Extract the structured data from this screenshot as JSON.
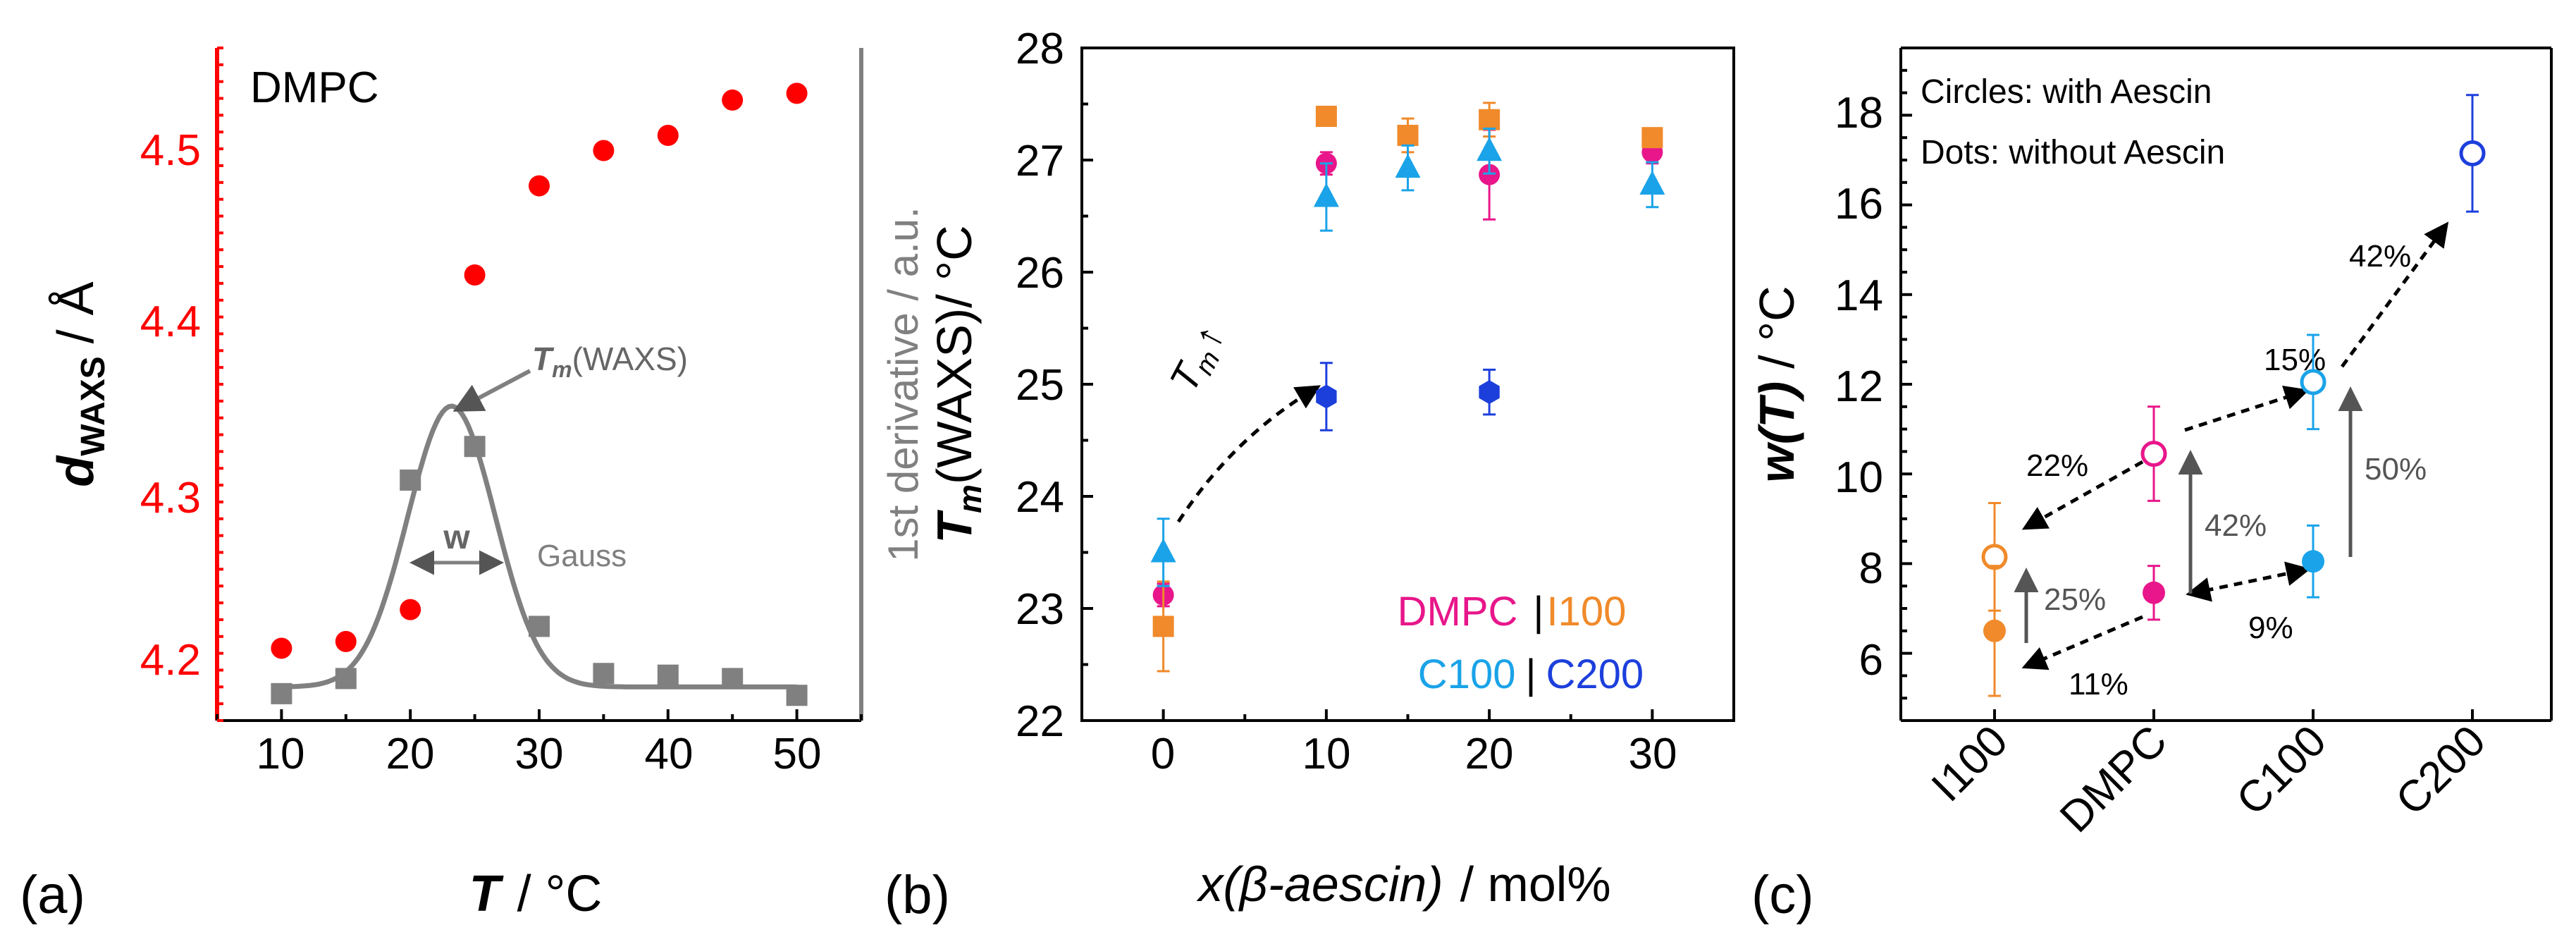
{
  "chart_data": [
    {
      "panel": "(a)",
      "type": "scatter",
      "title": "DMPC",
      "xlabel_var": "T",
      "xlabel_unit": "/ °C",
      "ylabel_var": "d",
      "ylabel_sub": "WAXS",
      "ylabel_unit": "/ Å",
      "ylabel_right": "1st derivative / a.u.",
      "xlim": [
        5,
        55
      ],
      "ylim": [
        4.155,
        4.555
      ],
      "xticks": [
        "10",
        "20",
        "30",
        "40",
        "50"
      ],
      "yticks": [
        "4.2",
        "4.3",
        "4.4",
        "4.5"
      ],
      "series": [
        {
          "name": "d_WAXS",
          "color": "#ff0000",
          "marker": "circle",
          "x": [
            10,
            15,
            20,
            25,
            30,
            35,
            40,
            45,
            50
          ],
          "y": [
            4.198,
            4.202,
            4.221,
            4.42,
            4.473,
            4.494,
            4.503,
            4.524,
            4.528
          ]
        },
        {
          "name": "1st derivative",
          "color": "#808080",
          "marker": "square",
          "axis": "right",
          "x": [
            10,
            15,
            20,
            25,
            30,
            35,
            40,
            45,
            50
          ],
          "y": [
            4.171,
            4.18,
            4.298,
            4.318,
            4.211,
            4.183,
            4.182,
            4.18,
            4.17
          ]
        },
        {
          "name": "Gauss fit",
          "color": "#808080",
          "type": "line",
          "baseline": 4.175,
          "amplitude": 0.167,
          "center": 23.2,
          "sigma": 3.4
        }
      ],
      "annotations": {
        "tm_label": "(WAXS)",
        "tm_var": "T",
        "tm_sub": "m",
        "width_label": "w",
        "gauss_label": "Gauss"
      }
    },
    {
      "panel": "(b)",
      "type": "scatter",
      "xlabel_var": "x(β-aescin)",
      "xlabel_unit": "/ mol%",
      "ylabel": "(WAXS)/ °C",
      "ylabel_var": "T",
      "ylabel_sub": "m",
      "xlim": [
        -5,
        35
      ],
      "ylim": [
        22,
        28
      ],
      "xticks": [
        "0",
        "10",
        "20",
        "30"
      ],
      "yticks": [
        "22",
        "23",
        "24",
        "25",
        "26",
        "27",
        "28"
      ],
      "series": [
        {
          "name": "DMPC",
          "color": "#e8168a",
          "marker": "circle",
          "x": [
            0,
            10,
            20,
            30
          ],
          "y": [
            23.12,
            26.97,
            26.87,
            27.07
          ],
          "err": [
            0.1,
            0.1,
            0.4,
            0.1
          ]
        },
        {
          "name": "I100",
          "color": "#f08a2a",
          "marker": "square",
          "x": [
            0,
            10,
            15,
            20,
            30
          ],
          "y": [
            22.84,
            27.39,
            27.22,
            27.36,
            27.2
          ],
          "err": [
            0.4,
            0.07,
            0.15,
            0.15,
            0.07
          ]
        },
        {
          "name": "C100",
          "color": "#1aa3e8",
          "marker": "triangle",
          "x": [
            0,
            10,
            15,
            20,
            30
          ],
          "y": [
            23.5,
            26.67,
            26.93,
            27.08,
            26.78
          ],
          "err": [
            0.3,
            0.3,
            0.2,
            0.2,
            0.2
          ]
        },
        {
          "name": "C200",
          "color": "#1c3fdc",
          "marker": "hexagon",
          "x": [
            10,
            20
          ],
          "y": [
            24.89,
            24.93
          ],
          "err": [
            0.3,
            0.2
          ]
        }
      ],
      "legend": {
        "row1": [
          "DMPC",
          "|",
          "I100"
        ],
        "row2": [
          "C100",
          "|",
          "C200"
        ]
      },
      "annotations": {
        "arrow_label_var": "T",
        "arrow_label_sub": "m",
        "arrow_label_sym": "↑"
      }
    },
    {
      "panel": "(c)",
      "type": "scatter",
      "ylabel_var": "w(T)",
      "ylabel_unit": "/ °C",
      "ylim": [
        4.5,
        19.5
      ],
      "yticks": [
        "6",
        "8",
        "10",
        "12",
        "14",
        "16",
        "18"
      ],
      "categories": [
        "I100",
        "DMPC",
        "C100",
        "C200"
      ],
      "legend_text": [
        "Circles: with Aescin",
        "Dots: without Aescin"
      ],
      "series": [
        {
          "name": "with Aescin (circles)",
          "marker": "open-circle",
          "categories": [
            "I100",
            "DMPC",
            "C100",
            "C200"
          ],
          "y": [
            8.15,
            10.45,
            12.05,
            17.15
          ],
          "err": [
            1.2,
            1.05,
            1.05,
            1.3
          ],
          "colors": [
            "#f08a2a",
            "#e8168a",
            "#1aa3e8",
            "#1c3fdc"
          ]
        },
        {
          "name": "without Aescin (dots)",
          "marker": "filled-circle",
          "categories": [
            "I100",
            "DMPC",
            "C100"
          ],
          "y": [
            6.5,
            7.35,
            8.05
          ],
          "err": [
            1.45,
            0.6,
            0.8
          ],
          "colors": [
            "#f08a2a",
            "#e8168a",
            "#1aa3e8"
          ]
        }
      ],
      "percent_labels": [
        "42%",
        "15%",
        "22%",
        "50%",
        "42%",
        "25%",
        "9%",
        "11%"
      ]
    }
  ],
  "panel_labels": [
    "(a)",
    "(b)",
    "(c)"
  ]
}
